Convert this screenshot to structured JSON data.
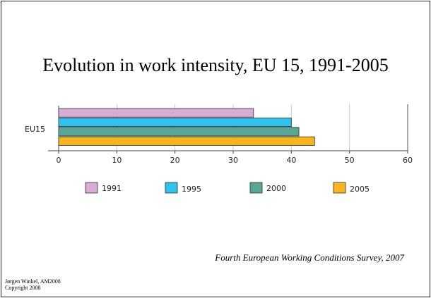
{
  "slide": {
    "title": "Evolution in work intensity, EU 15, 1991-2005",
    "source": "Fourth European Working Conditions Survey, 2007",
    "footer_line1": "Jørgen Winkel, AM2008",
    "footer_line2": "Copyright 2008"
  },
  "chart_data": {
    "type": "bar",
    "orientation": "horizontal",
    "categories": [
      "EU15"
    ],
    "series": [
      {
        "name": "1991",
        "values": [
          33.5
        ],
        "color": "#d9acd5"
      },
      {
        "name": "1995",
        "values": [
          40
        ],
        "color": "#2ec4ef"
      },
      {
        "name": "2000",
        "values": [
          41.3
        ],
        "color": "#56a795"
      },
      {
        "name": "2005",
        "values": [
          44
        ],
        "color": "#f6b51e"
      }
    ],
    "xlim": [
      0,
      60
    ],
    "xticks": [
      "0",
      "10",
      "20",
      "30",
      "40",
      "50",
      "60"
    ],
    "grid": true,
    "legend_position": "bottom",
    "xlabel": "",
    "ylabel": ""
  }
}
